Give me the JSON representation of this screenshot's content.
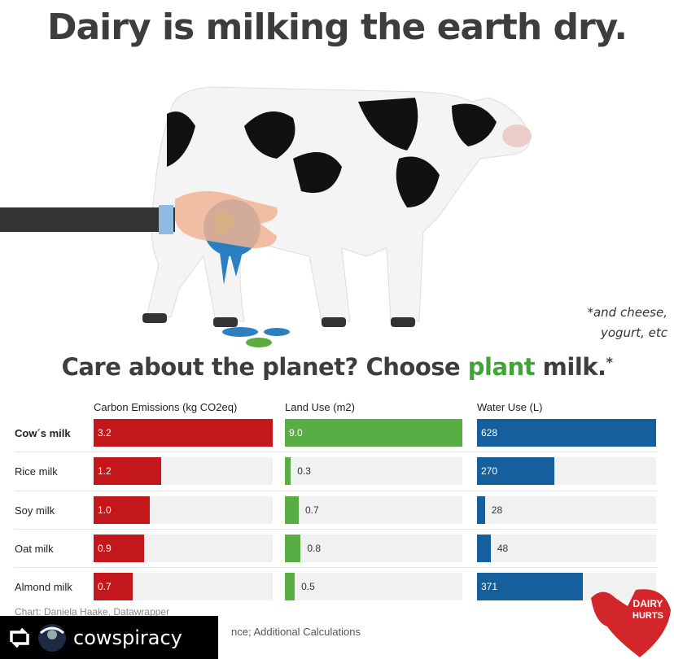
{
  "title": "Dairy is milking the earth dry.",
  "note": "*and cheese,\nyogurt, etc",
  "subtitle": {
    "part1": "Care about the planet? Choose ",
    "highlight": "plant",
    "part2": " milk.",
    "asterisk": "*"
  },
  "chart_data": {
    "type": "bar",
    "orientation": "horizontal",
    "categories": [
      "Cow´s milk",
      "Rice milk",
      "Soy milk",
      "Oat milk",
      "Almond milk"
    ],
    "series": [
      {
        "name": "Carbon Emissions (kg CO2eq)",
        "values": [
          3.2,
          1.2,
          1.0,
          0.9,
          0.7
        ],
        "labels": [
          "3.2",
          "1.2",
          "1.0",
          "0.9",
          "0.7"
        ],
        "color": "#c4171c",
        "max": 3.2
      },
      {
        "name": "Land Use (m2)",
        "values": [
          9.0,
          0.3,
          0.7,
          0.8,
          0.5
        ],
        "labels": [
          "9.0",
          "0.3",
          "0.7",
          "0.8",
          "0.5"
        ],
        "color": "#58ad44",
        "max": 9.0
      },
      {
        "name": "Water Use (L)",
        "values": [
          628,
          270,
          28,
          48,
          371
        ],
        "labels": [
          "628",
          "270",
          "28",
          "48",
          "371"
        ],
        "color": "#15609c",
        "max": 628
      }
    ]
  },
  "credit": "Chart: Daniela Haake, Datawrapper",
  "source": "nce; Additional Calculations",
  "overlay": {
    "handle": "cowspiracy",
    "icon": "repost-icon"
  },
  "logo": {
    "text1": "DAIRY",
    "text2": "HURTS",
    "color": "#d3262b"
  }
}
